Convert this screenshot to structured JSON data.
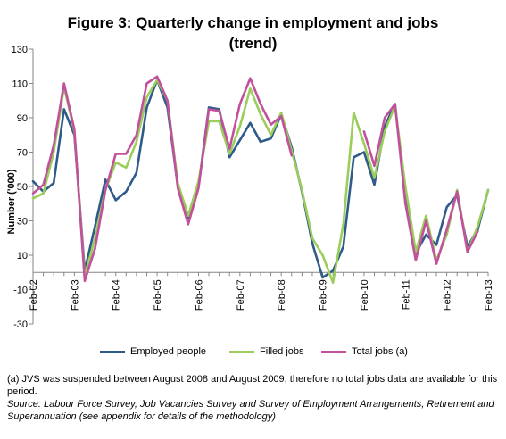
{
  "title_line1": "Figure 3: Quarterly change in employment and jobs",
  "title_line2": "(trend)",
  "note": "(a) JVS was suspended between  August 2008 and August 2009, therefore no total jobs data are available for this period.",
  "source": "Source: Labour Force Survey, Job Vacancies Survey and Survey of Employment Arrangements, Retirement  and Superannuation (see appendix for details of the methodology)",
  "chart_data": {
    "type": "line",
    "ylabel": "Number ('000)",
    "xlabel": "",
    "ylim": [
      -30,
      130
    ],
    "yticks": [
      -30,
      -10,
      10,
      30,
      50,
      70,
      90,
      110,
      130
    ],
    "x_ticklabels": [
      "Feb-02",
      "Feb-03",
      "Feb-04",
      "Feb-05",
      "Feb-06",
      "Feb-07",
      "Feb-08",
      "Feb-09",
      "Feb-10",
      "Feb-11",
      "Feb-12",
      "Feb-13"
    ],
    "periods_per_tick": 4,
    "grid": false,
    "legend_position": "bottom",
    "series": [
      {
        "name": "Employed people",
        "color": "#2F5B8A",
        "values": [
          53,
          47,
          52,
          95,
          80,
          1,
          27,
          54,
          42,
          47,
          58,
          96,
          112,
          96,
          50,
          32,
          50,
          96,
          95,
          67,
          77,
          87,
          76,
          78,
          92,
          73,
          47,
          17,
          -3,
          1,
          15,
          67,
          70,
          51,
          85,
          98,
          42,
          11,
          22,
          16,
          38,
          45,
          15,
          25,
          48
        ]
      },
      {
        "name": "Filled jobs",
        "color": "#9ACD5A",
        "values": [
          43,
          46,
          70,
          108,
          82,
          -2,
          20,
          48,
          64,
          61,
          76,
          102,
          112,
          100,
          52,
          33,
          53,
          88,
          88,
          69,
          85,
          107,
          92,
          80,
          93,
          71,
          48,
          20,
          10,
          -6,
          28,
          93,
          75,
          55,
          82,
          97,
          50,
          12,
          33,
          7,
          22,
          48,
          12,
          27,
          48
        ]
      },
      {
        "name": "Total jobs (a)",
        "color": "#C2519C",
        "values": [
          46,
          51,
          74,
          110,
          83,
          -5,
          14,
          48,
          69,
          69,
          80,
          110,
          114,
          100,
          49,
          28,
          49,
          95,
          94,
          72,
          98,
          113,
          98,
          86,
          91,
          68,
          null,
          null,
          null,
          null,
          null,
          null,
          82,
          62,
          90,
          98,
          40,
          7,
          30,
          5,
          25,
          47,
          12,
          24,
          null
        ]
      }
    ]
  }
}
